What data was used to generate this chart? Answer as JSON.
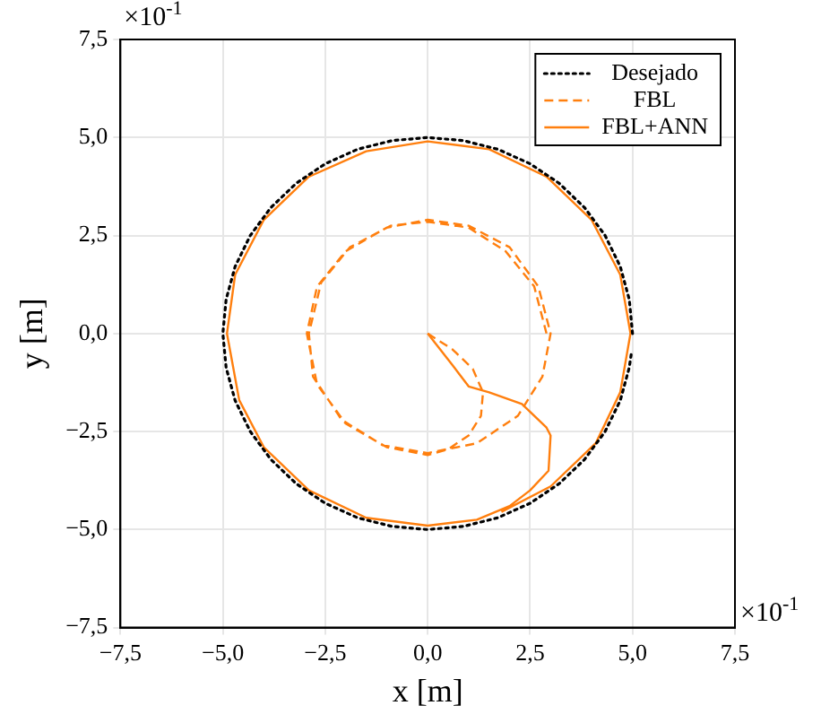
{
  "chart_data": {
    "type": "line",
    "xlabel": "x [m]",
    "ylabel": "y [m]",
    "xlim": [
      -7.5,
      7.5
    ],
    "ylim": [
      -7.5,
      7.5
    ],
    "xticks": [
      {
        "value": -7.5,
        "label": "−7,5"
      },
      {
        "value": -5,
        "label": "−5,0"
      },
      {
        "value": -2.5,
        "label": "−2,5"
      },
      {
        "value": 0,
        "label": "0,0"
      },
      {
        "value": 2.5,
        "label": "2,5"
      },
      {
        "value": 5,
        "label": "5,0"
      },
      {
        "value": 7.5,
        "label": "7,5"
      }
    ],
    "yticks": [
      {
        "value": -7.5,
        "label": "−7,5"
      },
      {
        "value": -5,
        "label": "−5,0"
      },
      {
        "value": -2.5,
        "label": "−2,5"
      },
      {
        "value": 0,
        "label": "0,0"
      },
      {
        "value": 2.5,
        "label": "2,5"
      },
      {
        "value": 5,
        "label": "5,0"
      },
      {
        "value": 7.5,
        "label": "7,5"
      }
    ],
    "annotations": [
      "×10$^{-1}$",
      "×10$^{-1}$"
    ],
    "grid": true,
    "legend": "top right",
    "marker": "none",
    "series": [
      {
        "name": "Desejado",
        "color": "#000000",
        "line_style": "dotted",
        "x": [
          5,
          4.92,
          4.7,
          4.33,
          3.83,
          3.21,
          2.5,
          1.71,
          0.87,
          0,
          -0.87,
          -1.71,
          -2.5,
          -3.21,
          -3.83,
          -4.33,
          -4.7,
          -4.92,
          -5,
          -4.92,
          -4.7,
          -4.33,
          -3.83,
          -3.21,
          -2.5,
          -1.71,
          -0.87,
          0,
          0.87,
          1.71,
          2.5,
          3.21,
          3.83,
          4.33,
          4.7,
          4.92,
          4.98
        ],
        "values": [
          0,
          0.87,
          1.71,
          2.5,
          3.21,
          3.83,
          4.33,
          4.7,
          4.92,
          5,
          4.92,
          4.7,
          4.33,
          3.83,
          3.21,
          2.5,
          1.71,
          0.87,
          0,
          -0.87,
          -1.71,
          -2.5,
          -3.21,
          -3.83,
          -4.33,
          -4.7,
          -4.92,
          -5,
          -4.92,
          -4.7,
          -4.33,
          -3.83,
          -3.21,
          -2.5,
          -1.71,
          -0.87,
          -0.44
        ]
      },
      {
        "name": "FBL",
        "color": "#ff7f0e",
        "line_style": "dashed",
        "x": [
          0,
          0.6,
          1.1,
          1.35,
          1.3,
          1.0,
          0.5,
          0,
          -1.0,
          -2.0,
          -2.7,
          -2.95,
          -2.7,
          -2.0,
          -1.0,
          0,
          1.0,
          2.0,
          2.7,
          3.0,
          2.8,
          2.2,
          1.2,
          0,
          -1.1,
          -2.1,
          -2.8,
          -2.9,
          -2.6,
          -1.9,
          -0.9,
          0,
          1.0,
          1.9,
          2.6,
          2.9
        ],
        "values": [
          0,
          -0.4,
          -0.9,
          -1.5,
          -2.1,
          -2.6,
          -2.95,
          -3.1,
          -2.9,
          -2.3,
          -1.3,
          0,
          1.2,
          2.1,
          2.7,
          2.9,
          2.75,
          2.2,
          1.2,
          0,
          -1.1,
          -2.1,
          -2.8,
          -3.05,
          -2.85,
          -2.2,
          -1.1,
          0,
          1.3,
          2.2,
          2.75,
          2.85,
          2.7,
          2.1,
          1.2,
          0
        ]
      },
      {
        "name": "FBL+ANN",
        "color": "#ff7f0e",
        "line_style": "solid",
        "x": [
          0,
          0.6,
          1.0,
          1.5,
          2.3,
          2.9,
          3.0,
          2.95,
          2.5,
          2.0,
          1.2,
          0,
          -1.5,
          -2.9,
          -4.0,
          -4.6,
          -4.9,
          -4.7,
          -4.0,
          -2.9,
          -1.5,
          0,
          1.5,
          2.9,
          4.0,
          4.7,
          4.95,
          4.7,
          4.1,
          3.0,
          1.8
        ],
        "values": [
          0,
          -0.8,
          -1.35,
          -1.5,
          -1.8,
          -2.4,
          -2.6,
          -3.5,
          -4.0,
          -4.4,
          -4.75,
          -4.9,
          -4.7,
          -4.0,
          -2.9,
          -1.7,
          0,
          1.5,
          2.9,
          4.0,
          4.65,
          4.9,
          4.7,
          4.0,
          2.9,
          1.5,
          0,
          -1.5,
          -2.8,
          -3.9,
          -4.55
        ]
      }
    ]
  }
}
